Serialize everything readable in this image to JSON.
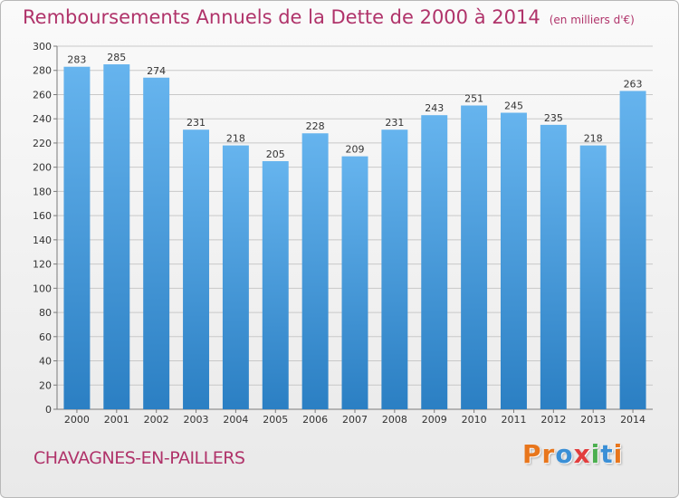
{
  "header": {
    "title": "Remboursements Annuels de la Dette de 2000 à 2014",
    "unit": "(en milliers d'€)"
  },
  "footer": {
    "place": "CHAVAGNES-EN-PAILLERS",
    "logo": "Proxiti",
    "logo_colors": [
      "#e8761c",
      "#e8761c",
      "#3a8fd6",
      "#e23d3d",
      "#4caf50",
      "#3a8fd6",
      "#e8761c"
    ]
  },
  "colors": {
    "bar_light": "#66b4ee",
    "bar_dark": "#2b7fc3",
    "accent_text": "#b0336a",
    "grid": "#c8c8c8",
    "axis": "#7a7a7a"
  },
  "chart_data": {
    "type": "bar",
    "title": "Remboursements Annuels de la Dette de 2000 à 2014",
    "subtitle": "(en milliers d'€)",
    "categories": [
      "2000",
      "2001",
      "2002",
      "2003",
      "2004",
      "2005",
      "2006",
      "2007",
      "2008",
      "2009",
      "2010",
      "2011",
      "2012",
      "2013",
      "2014"
    ],
    "values": [
      283,
      285,
      274,
      231,
      218,
      205,
      228,
      209,
      231,
      243,
      251,
      245,
      235,
      218,
      263
    ],
    "ylim": [
      0,
      300
    ],
    "yticks": [
      0,
      20,
      40,
      60,
      80,
      100,
      120,
      140,
      160,
      180,
      200,
      220,
      240,
      260,
      280,
      300
    ],
    "grid": true,
    "legend": "none",
    "data_labels": true
  }
}
